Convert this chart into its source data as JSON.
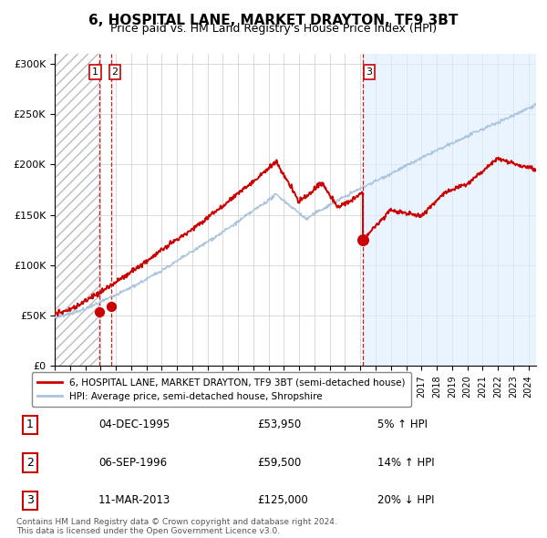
{
  "title": "6, HOSPITAL LANE, MARKET DRAYTON, TF9 3BT",
  "subtitle": "Price paid vs. HM Land Registry's House Price Index (HPI)",
  "title_fontsize": 11,
  "subtitle_fontsize": 9,
  "legend_line1": "6, HOSPITAL LANE, MARKET DRAYTON, TF9 3BT (semi-detached house)",
  "legend_line2": "HPI: Average price, semi-detached house, Shropshire",
  "footer": "Contains HM Land Registry data © Crown copyright and database right 2024.\nThis data is licensed under the Open Government Licence v3.0.",
  "transactions": [
    {
      "num": 1,
      "date": "04-DEC-1995",
      "price": 53950,
      "pct": "5%",
      "dir": "↑"
    },
    {
      "num": 2,
      "date": "06-SEP-1996",
      "price": 59500,
      "pct": "14%",
      "dir": "↑"
    },
    {
      "num": 3,
      "date": "11-MAR-2013",
      "price": 125000,
      "pct": "20%",
      "dir": "↓"
    }
  ],
  "transaction_dates_decimal": [
    1995.92,
    1996.68,
    2013.19
  ],
  "transaction_prices": [
    53950,
    59500,
    125000
  ],
  "hpi_color": "#aac4dd",
  "price_color": "#cc0000",
  "dot_color": "#cc0000",
  "vline_color": "#cc0000",
  "shade_color": "#ddeeff",
  "ylim": [
    0,
    310000
  ],
  "yticks": [
    0,
    50000,
    100000,
    150000,
    200000,
    250000,
    300000
  ],
  "xlim_start": 1993.0,
  "xlim_end": 2024.5,
  "background_color": "#ffffff",
  "grid_color": "#cccccc"
}
